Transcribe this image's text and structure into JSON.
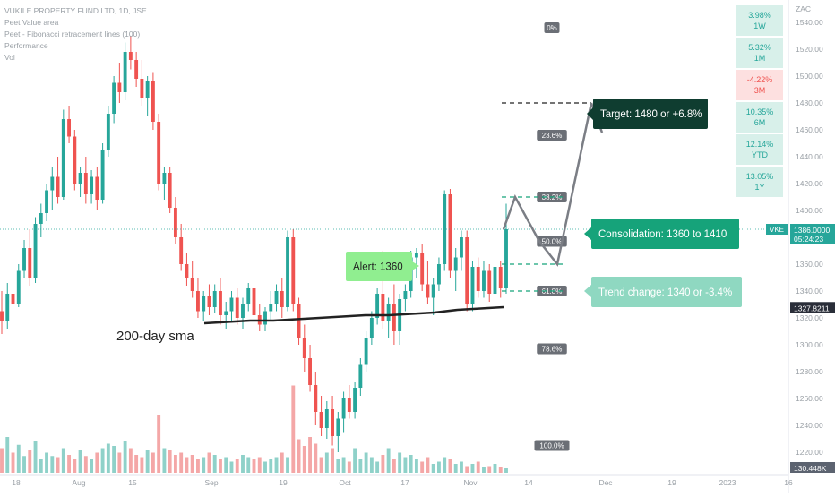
{
  "legend": {
    "title": "VUKILE PROPERTY FUND LTD, 1D, JSE",
    "lines": [
      "Peet Value area",
      "Peet - Fibonacci retracement lines (100)",
      "Performance",
      "Vol"
    ]
  },
  "currency": "ZAC",
  "performance": [
    {
      "value": "3.98%",
      "period": "1W",
      "sign": "pos"
    },
    {
      "value": "5.32%",
      "period": "1M",
      "sign": "pos"
    },
    {
      "value": "-4.22%",
      "period": "3M",
      "sign": "neg"
    },
    {
      "value": "10.35%",
      "period": "6M",
      "sign": "pos"
    },
    {
      "value": "12.14%",
      "period": "YTD",
      "sign": "pos"
    },
    {
      "value": "13.05%",
      "period": "1Y",
      "sign": "pos"
    }
  ],
  "annotations": {
    "target": "Target: 1480 or +6.8%",
    "consolidation": "Consolidation: 1360 to 1410",
    "trend_change": "Trend change: 1340 or -3.4%",
    "alert": "Alert: 1360",
    "sma": "200-day sma"
  },
  "fib_levels": [
    {
      "label": "0%",
      "price": 1536
    },
    {
      "label": "23.6%",
      "price": 1456
    },
    {
      "label": "38.2%",
      "price": 1410
    },
    {
      "label": "50.0%",
      "price": 1377
    },
    {
      "label": "61.8%",
      "price": 1340
    },
    {
      "label": "78.6%",
      "price": 1297
    },
    {
      "label": "100.0%",
      "price": 1225
    }
  ],
  "price_badges": {
    "ticker": "VKE",
    "last": "1386.0000",
    "countdown": "05:24:23",
    "sma_value": "1327.8211",
    "volume": "130.448K"
  },
  "colors": {
    "up": "#26a69a",
    "down": "#ef5350",
    "vol_up": "#8fd1c9",
    "vol_down": "#f4a7a7",
    "target": "#0f3d30",
    "consolidation": "#16a37a",
    "trend": "#8fd8c1",
    "alert": "#90ee90",
    "sma": "#222222"
  },
  "chart_data": {
    "type": "candlestick",
    "title": "VUKILE PROPERTY FUND LTD, 1D, JSE",
    "y_axis": {
      "range": [
        1210,
        1550
      ],
      "ticks": [
        1540,
        1520,
        1500,
        1480,
        1460,
        1440,
        1420,
        1400,
        1380,
        1360,
        1340,
        1320,
        1300,
        1280,
        1260,
        1240,
        1220
      ],
      "unit": "ZAC"
    },
    "x_axis_labels": [
      "18",
      "Aug",
      "15",
      "Sep",
      "19",
      "Oct",
      "17",
      "Nov",
      "14",
      "Dec",
      "19",
      "2023",
      "16"
    ],
    "last_price": 1386,
    "sma_200_last": 1327.8211,
    "candles_approx": [
      {
        "o": 1325,
        "h": 1340,
        "l": 1308,
        "c": 1318
      },
      {
        "o": 1318,
        "h": 1346,
        "l": 1312,
        "c": 1338
      },
      {
        "o": 1338,
        "h": 1356,
        "l": 1325,
        "c": 1330
      },
      {
        "o": 1330,
        "h": 1360,
        "l": 1328,
        "c": 1355
      },
      {
        "o": 1355,
        "h": 1378,
        "l": 1350,
        "c": 1372
      },
      {
        "o": 1372,
        "h": 1386,
        "l": 1344,
        "c": 1350
      },
      {
        "o": 1350,
        "h": 1395,
        "l": 1346,
        "c": 1390
      },
      {
        "o": 1390,
        "h": 1405,
        "l": 1380,
        "c": 1398
      },
      {
        "o": 1398,
        "h": 1420,
        "l": 1392,
        "c": 1415
      },
      {
        "o": 1415,
        "h": 1432,
        "l": 1400,
        "c": 1425
      },
      {
        "o": 1425,
        "h": 1440,
        "l": 1405,
        "c": 1410
      },
      {
        "o": 1410,
        "h": 1475,
        "l": 1408,
        "c": 1468
      },
      {
        "o": 1468,
        "h": 1478,
        "l": 1450,
        "c": 1455
      },
      {
        "o": 1455,
        "h": 1460,
        "l": 1415,
        "c": 1420
      },
      {
        "o": 1420,
        "h": 1432,
        "l": 1410,
        "c": 1428
      },
      {
        "o": 1428,
        "h": 1440,
        "l": 1405,
        "c": 1412
      },
      {
        "o": 1412,
        "h": 1430,
        "l": 1405,
        "c": 1425
      },
      {
        "o": 1425,
        "h": 1432,
        "l": 1400,
        "c": 1408
      },
      {
        "o": 1408,
        "h": 1450,
        "l": 1405,
        "c": 1445
      },
      {
        "o": 1445,
        "h": 1478,
        "l": 1440,
        "c": 1472
      },
      {
        "o": 1472,
        "h": 1500,
        "l": 1465,
        "c": 1495
      },
      {
        "o": 1495,
        "h": 1510,
        "l": 1480,
        "c": 1488
      },
      {
        "o": 1488,
        "h": 1525,
        "l": 1482,
        "c": 1518
      },
      {
        "o": 1518,
        "h": 1530,
        "l": 1505,
        "c": 1512
      },
      {
        "o": 1512,
        "h": 1518,
        "l": 1492,
        "c": 1498
      },
      {
        "o": 1498,
        "h": 1512,
        "l": 1478,
        "c": 1484
      },
      {
        "o": 1484,
        "h": 1500,
        "l": 1470,
        "c": 1496
      },
      {
        "o": 1496,
        "h": 1503,
        "l": 1460,
        "c": 1466
      },
      {
        "o": 1466,
        "h": 1472,
        "l": 1415,
        "c": 1420
      },
      {
        "o": 1420,
        "h": 1432,
        "l": 1408,
        "c": 1428
      },
      {
        "o": 1428,
        "h": 1432,
        "l": 1398,
        "c": 1402
      },
      {
        "o": 1402,
        "h": 1410,
        "l": 1375,
        "c": 1380
      },
      {
        "o": 1380,
        "h": 1390,
        "l": 1355,
        "c": 1360
      },
      {
        "o": 1360,
        "h": 1368,
        "l": 1344,
        "c": 1350
      },
      {
        "o": 1350,
        "h": 1362,
        "l": 1335,
        "c": 1340
      },
      {
        "o": 1340,
        "h": 1350,
        "l": 1320,
        "c": 1325
      },
      {
        "o": 1325,
        "h": 1340,
        "l": 1318,
        "c": 1336
      },
      {
        "o": 1336,
        "h": 1345,
        "l": 1322,
        "c": 1328
      },
      {
        "o": 1328,
        "h": 1345,
        "l": 1324,
        "c": 1340
      },
      {
        "o": 1340,
        "h": 1350,
        "l": 1315,
        "c": 1322
      },
      {
        "o": 1322,
        "h": 1332,
        "l": 1312,
        "c": 1325
      },
      {
        "o": 1325,
        "h": 1340,
        "l": 1318,
        "c": 1335
      },
      {
        "o": 1335,
        "h": 1342,
        "l": 1315,
        "c": 1320
      },
      {
        "o": 1320,
        "h": 1335,
        "l": 1312,
        "c": 1330
      },
      {
        "o": 1330,
        "h": 1346,
        "l": 1325,
        "c": 1342
      },
      {
        "o": 1342,
        "h": 1350,
        "l": 1318,
        "c": 1322
      },
      {
        "o": 1322,
        "h": 1330,
        "l": 1310,
        "c": 1315
      },
      {
        "o": 1315,
        "h": 1328,
        "l": 1310,
        "c": 1325
      },
      {
        "o": 1325,
        "h": 1340,
        "l": 1318,
        "c": 1330
      },
      {
        "o": 1330,
        "h": 1345,
        "l": 1325,
        "c": 1340
      },
      {
        "o": 1340,
        "h": 1350,
        "l": 1320,
        "c": 1328
      },
      {
        "o": 1328,
        "h": 1385,
        "l": 1325,
        "c": 1380
      },
      {
        "o": 1380,
        "h": 1386,
        "l": 1325,
        "c": 1330
      },
      {
        "o": 1330,
        "h": 1335,
        "l": 1300,
        "c": 1305
      },
      {
        "o": 1305,
        "h": 1315,
        "l": 1280,
        "c": 1290
      },
      {
        "o": 1290,
        "h": 1300,
        "l": 1265,
        "c": 1270
      },
      {
        "o": 1270,
        "h": 1280,
        "l": 1240,
        "c": 1250
      },
      {
        "o": 1250,
        "h": 1262,
        "l": 1232,
        "c": 1238
      },
      {
        "o": 1238,
        "h": 1258,
        "l": 1230,
        "c": 1252
      },
      {
        "o": 1252,
        "h": 1262,
        "l": 1225,
        "c": 1232
      },
      {
        "o": 1232,
        "h": 1250,
        "l": 1220,
        "c": 1245
      },
      {
        "o": 1245,
        "h": 1265,
        "l": 1235,
        "c": 1260
      },
      {
        "o": 1260,
        "h": 1270,
        "l": 1245,
        "c": 1250
      },
      {
        "o": 1250,
        "h": 1272,
        "l": 1245,
        "c": 1268
      },
      {
        "o": 1268,
        "h": 1290,
        "l": 1262,
        "c": 1285
      },
      {
        "o": 1285,
        "h": 1310,
        "l": 1280,
        "c": 1305
      },
      {
        "o": 1305,
        "h": 1325,
        "l": 1300,
        "c": 1320
      },
      {
        "o": 1320,
        "h": 1342,
        "l": 1315,
        "c": 1338
      },
      {
        "o": 1338,
        "h": 1370,
        "l": 1312,
        "c": 1318
      },
      {
        "o": 1318,
        "h": 1335,
        "l": 1305,
        "c": 1330
      },
      {
        "o": 1330,
        "h": 1345,
        "l": 1300,
        "c": 1310
      },
      {
        "o": 1310,
        "h": 1338,
        "l": 1300,
        "c": 1334
      },
      {
        "o": 1334,
        "h": 1345,
        "l": 1325,
        "c": 1340
      },
      {
        "o": 1340,
        "h": 1370,
        "l": 1335,
        "c": 1365
      },
      {
        "o": 1365,
        "h": 1372,
        "l": 1350,
        "c": 1368
      },
      {
        "o": 1368,
        "h": 1375,
        "l": 1340,
        "c": 1345
      },
      {
        "o": 1345,
        "h": 1362,
        "l": 1330,
        "c": 1335
      },
      {
        "o": 1335,
        "h": 1350,
        "l": 1322,
        "c": 1345
      },
      {
        "o": 1345,
        "h": 1365,
        "l": 1340,
        "c": 1360
      },
      {
        "o": 1360,
        "h": 1415,
        "l": 1355,
        "c": 1412
      },
      {
        "o": 1412,
        "h": 1416,
        "l": 1350,
        "c": 1355
      },
      {
        "o": 1355,
        "h": 1372,
        "l": 1340,
        "c": 1365
      },
      {
        "o": 1365,
        "h": 1385,
        "l": 1355,
        "c": 1380
      },
      {
        "o": 1380,
        "h": 1385,
        "l": 1325,
        "c": 1330
      },
      {
        "o": 1330,
        "h": 1362,
        "l": 1325,
        "c": 1358
      },
      {
        "o": 1358,
        "h": 1365,
        "l": 1335,
        "c": 1340
      },
      {
        "o": 1340,
        "h": 1362,
        "l": 1335,
        "c": 1355
      },
      {
        "o": 1355,
        "h": 1360,
        "l": 1332,
        "c": 1338
      },
      {
        "o": 1338,
        "h": 1365,
        "l": 1335,
        "c": 1358
      },
      {
        "o": 1358,
        "h": 1362,
        "l": 1335,
        "c": 1342
      },
      {
        "o": 1342,
        "h": 1405,
        "l": 1338,
        "c": 1386
      }
    ],
    "volume_approx": [
      22,
      32,
      18,
      25,
      15,
      20,
      28,
      12,
      18,
      15,
      14,
      22,
      16,
      12,
      20,
      15,
      12,
      18,
      22,
      26,
      24,
      18,
      28,
      22,
      16,
      14,
      20,
      18,
      52,
      22,
      20,
      16,
      18,
      14,
      16,
      12,
      14,
      18,
      16,
      12,
      14,
      10,
      12,
      16,
      14,
      12,
      14,
      10,
      12,
      14,
      18,
      14,
      78,
      30,
      24,
      32,
      26,
      14,
      18,
      22,
      12,
      14,
      10,
      22,
      12,
      18,
      14,
      10,
      16,
      22,
      12,
      18,
      14,
      16,
      12,
      10,
      14,
      8,
      10,
      14,
      12,
      8,
      10,
      6,
      8,
      10,
      5,
      6,
      8,
      5,
      4
    ],
    "series": [
      {
        "name": "200-day sma",
        "values_approx": [
          1316,
          1317,
          1318,
          1318,
          1319,
          1320,
          1321,
          1322,
          1322,
          1323,
          1324,
          1326,
          1327,
          1328
        ]
      }
    ],
    "projection": [
      {
        "label": "Consolidation: 1360 to 1410",
        "range": [
          1360,
          1410
        ]
      },
      {
        "label": "Target: 1480 or +6.8%",
        "price": 1480
      },
      {
        "label": "Trend change: 1340 or -3.4%",
        "price": 1340
      },
      {
        "label": "Alert: 1360",
        "price": 1360
      }
    ]
  }
}
